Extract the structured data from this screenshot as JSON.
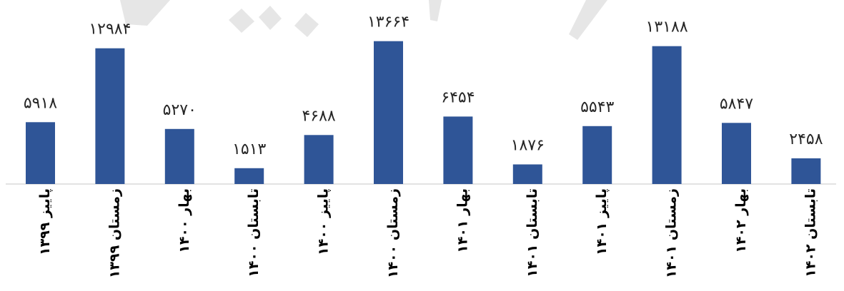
{
  "chart_data": {
    "type": "bar",
    "title": "",
    "xlabel": "",
    "ylabel": "",
    "ylim": [
      0,
      14600
    ],
    "grid": false,
    "legend": "none",
    "categories": [
      "پاییز ۱۳۹۹",
      "زمستان ۱۳۹۹",
      "بهار ۱۴۰۰",
      "تابستان ۱۴۰۰",
      "پاییز ۱۴۰۰",
      "زمستان ۱۴۰۰",
      "بهار ۱۴۰۱",
      "تابستان ۱۴۰۱",
      "پاییز ۱۴۰۱",
      "زمستان ۱۴۰۱",
      "بهار ۱۴۰۲",
      "تابستان ۱۴۰۲"
    ],
    "values": [
      5918,
      12984,
      5270,
      1513,
      4688,
      13664,
      6454,
      1876,
      5543,
      13188,
      5847,
      2458
    ],
    "value_labels": [
      "۵۹۱۸",
      "۱۲۹۸۴",
      "۵۲۷۰",
      "۱۵۱۳",
      "۴۶۸۸",
      "۱۳۶۶۴",
      "۶۴۵۴",
      "۱۸۷۶",
      "۵۵۴۳",
      "۱۳۱۸۸",
      "۵۸۴۷",
      "۲۴۵۸"
    ],
    "colors": {
      "bar": "#2f5597",
      "axis": "#d9d9d9",
      "watermark": "#e6e6e6"
    }
  }
}
